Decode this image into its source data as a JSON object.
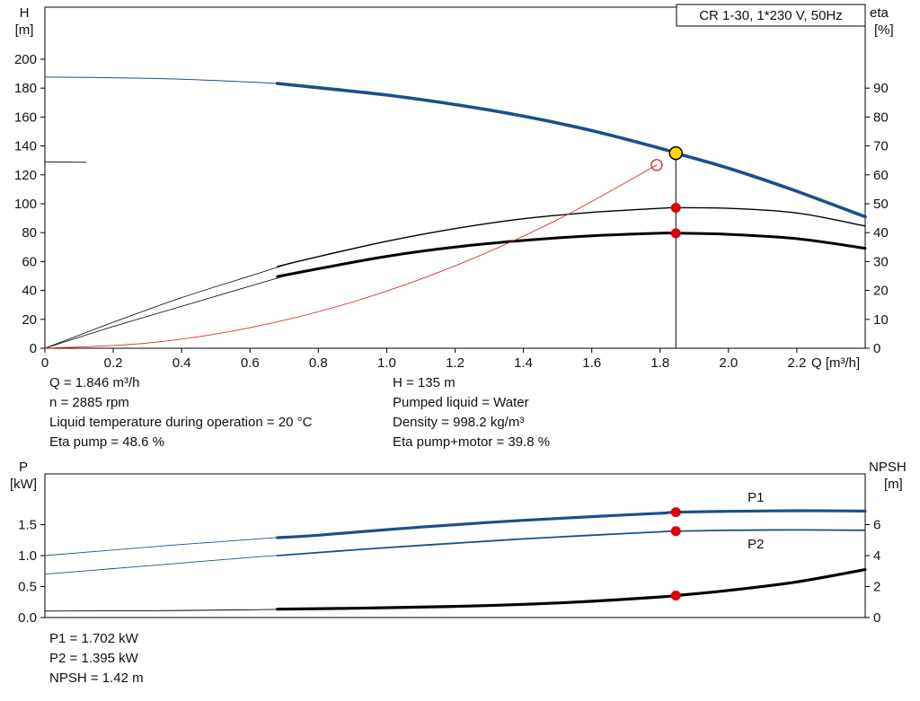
{
  "title_box": "CR 1-30, 1*230 V, 50Hz",
  "colors": {
    "curve_blue": "#1b4f8a",
    "curve_black": "#000000",
    "curve_red": "#dd2c2c",
    "marker_red": "#e00000",
    "marker_yellow": "#ffd800"
  },
  "info": {
    "top_left": [
      "Q = 1.846 m³/h",
      "n = 2885 rpm",
      "Liquid temperature during operation = 20 °C",
      "Eta pump = 48.6 %"
    ],
    "top_right": [
      "H = 135 m",
      "Pumped liquid = Water",
      "Density = 998.2 kg/m³",
      "Eta pump+motor = 39.8 %"
    ],
    "bottom": [
      "P1 = 1.702 kW",
      "P2 = 1.395 kW",
      "NPSH = 1.42 m"
    ]
  },
  "chart_data": [
    {
      "id": "qh-eta",
      "type": "line",
      "x": {
        "lim": [
          0,
          2.4
        ],
        "ticks": [
          0,
          0.2,
          0.4,
          0.6,
          0.8,
          1.0,
          1.2,
          1.4,
          1.6,
          1.8,
          2.0,
          2.2
        ],
        "tick_labels": [
          "0",
          "0.2",
          "0.4",
          "0.6",
          "0.8",
          "1.0",
          "1.2",
          "1.4",
          "1.6",
          "1.8",
          "2.0",
          "2.2"
        ],
        "label": "Q [m³/h]"
      },
      "left_axis": {
        "label_lines": [
          "H",
          "[m]"
        ],
        "lim": [
          0,
          236
        ],
        "ticks": [
          0,
          20,
          40,
          60,
          80,
          100,
          120,
          140,
          160,
          180,
          200
        ],
        "tick_labels": [
          "0",
          "20",
          "40",
          "60",
          "80",
          "100",
          "120",
          "140",
          "160",
          "180",
          "200"
        ]
      },
      "right_axis": {
        "label_lines": [
          "eta",
          "[%]"
        ],
        "lim": [
          0,
          118
        ],
        "ticks": [
          0,
          10,
          20,
          30,
          40,
          50,
          60,
          70,
          80,
          90
        ],
        "tick_labels": [
          "0",
          "10",
          "20",
          "30",
          "40",
          "50",
          "60",
          "70",
          "80",
          "90"
        ]
      },
      "series": [
        {
          "name": "h-curve-lead",
          "axis": "left",
          "color": "#1b4f8a",
          "width": 1,
          "points": [
            [
              0,
              187.6
            ],
            [
              0.2,
              187.2
            ],
            [
              0.4,
              186.2
            ],
            [
              0.6,
              184.2
            ],
            [
              0.72,
              182.8
            ]
          ]
        },
        {
          "name": "h-curve",
          "axis": "left",
          "color": "#1b4f8a",
          "width": 3.6,
          "points": [
            [
              0.68,
              183.2
            ],
            [
              0.8,
              180.3
            ],
            [
              1.0,
              175.2
            ],
            [
              1.2,
              168.6
            ],
            [
              1.4,
              160.6
            ],
            [
              1.6,
              150.6
            ],
            [
              1.8,
              138.4
            ],
            [
              1.846,
              135
            ],
            [
              2.0,
              124.6
            ],
            [
              2.2,
              108.6
            ],
            [
              2.4,
              91
            ]
          ]
        },
        {
          "name": "eta-pump-curve-lead",
          "axis": "right",
          "color": "#000000",
          "width": 0.8,
          "points": [
            [
              0,
              0
            ],
            [
              0.2,
              9
            ],
            [
              0.4,
              17.5
            ],
            [
              0.6,
              25
            ],
            [
              0.72,
              29.5
            ]
          ]
        },
        {
          "name": "eta-pump-curve",
          "axis": "right",
          "color": "#000000",
          "width": 1.4,
          "points": [
            [
              0.68,
              28.3
            ],
            [
              0.8,
              31.7
            ],
            [
              1.0,
              37
            ],
            [
              1.2,
              41.4
            ],
            [
              1.4,
              44.8
            ],
            [
              1.6,
              47
            ],
            [
              1.8,
              48.4
            ],
            [
              1.846,
              48.6
            ],
            [
              2.0,
              48.4
            ],
            [
              2.2,
              46.8
            ],
            [
              2.4,
              42.3
            ]
          ]
        },
        {
          "name": "eta-pump-motor-curve-lead",
          "axis": "right",
          "color": "#000000",
          "width": 0.8,
          "points": [
            [
              0,
              0
            ],
            [
              0.2,
              7.5
            ],
            [
              0.4,
              14.5
            ],
            [
              0.6,
              21.5
            ],
            [
              0.72,
              25.6
            ]
          ]
        },
        {
          "name": "eta-pump-motor-curve",
          "axis": "right",
          "color": "#000000",
          "width": 3,
          "points": [
            [
              0.68,
              24.8
            ],
            [
              0.8,
              27.5
            ],
            [
              1.0,
              31.8
            ],
            [
              1.2,
              35
            ],
            [
              1.4,
              37.3
            ],
            [
              1.6,
              38.9
            ],
            [
              1.8,
              39.8
            ],
            [
              1.846,
              39.8
            ],
            [
              2.0,
              39.4
            ],
            [
              2.2,
              37.9
            ],
            [
              2.4,
              34.6
            ]
          ]
        },
        {
          "name": "system-curve",
          "axis": "left",
          "color": "#dd2c2c",
          "width": 0.9,
          "points": [
            [
              0,
              0
            ],
            [
              0.3,
              3.6
            ],
            [
              0.6,
              14.2
            ],
            [
              0.9,
              32
            ],
            [
              1.2,
              57
            ],
            [
              1.5,
              89
            ],
            [
              1.79,
              126.8
            ]
          ]
        },
        {
          "name": "left-edge-segment",
          "axis": "left",
          "color": "#000000",
          "width": 0.9,
          "points": [
            [
              0,
              129
            ],
            [
              0.12,
              128.7
            ]
          ]
        }
      ],
      "vline": {
        "x": 1.846,
        "y": 135,
        "axis": "left"
      },
      "markers": [
        {
          "name": "system-open-ring",
          "x": 1.79,
          "y": 126.8,
          "axis": "left",
          "r": 6,
          "fill": "none",
          "stroke": "#dd2c2c",
          "stroke_width": 1.4
        },
        {
          "name": "eta-pump-duty-dot",
          "x": 1.846,
          "y": 48.6,
          "axis": "right",
          "r": 5.5,
          "fill": "#e00000"
        },
        {
          "name": "eta-pump-motor-duty-dot",
          "x": 1.846,
          "y": 39.8,
          "axis": "right",
          "r": 5.5,
          "fill": "#e00000"
        },
        {
          "name": "duty-point-marker",
          "x": 1.846,
          "y": 135,
          "axis": "left",
          "r": 7,
          "fill": "#ffd800",
          "stroke": "#000000",
          "stroke_width": 1.5
        }
      ],
      "labels": []
    },
    {
      "id": "p-npsh",
      "type": "line",
      "x": {
        "lim": [
          0,
          2.4
        ],
        "ticks": [],
        "tick_labels": [],
        "label": ""
      },
      "left_axis": {
        "label_lines": [
          "P",
          "[kW]"
        ],
        "lim": [
          0,
          2.32
        ],
        "ticks": [
          0,
          0.5,
          1.0,
          1.5
        ],
        "tick_labels": [
          "0.0",
          "0.5",
          "1.0",
          "1.5"
        ]
      },
      "right_axis": {
        "label_lines": [
          "NPSH",
          "[m]"
        ],
        "lim": [
          0,
          9.28
        ],
        "ticks": [
          0,
          2,
          4,
          6
        ],
        "tick_labels": [
          "0",
          "2",
          "4",
          "6"
        ]
      },
      "series": [
        {
          "name": "p1-curve-lead",
          "axis": "left",
          "color": "#1b4f8a",
          "width": 0.9,
          "points": [
            [
              0,
              1.0
            ],
            [
              0.2,
              1.09
            ],
            [
              0.4,
              1.18
            ],
            [
              0.6,
              1.26
            ],
            [
              0.72,
              1.31
            ]
          ]
        },
        {
          "name": "p1-curve",
          "axis": "left",
          "color": "#1b4f8a",
          "width": 3.2,
          "points": [
            [
              0.68,
              1.29
            ],
            [
              0.8,
              1.33
            ],
            [
              1.0,
              1.42
            ],
            [
              1.2,
              1.5
            ],
            [
              1.4,
              1.57
            ],
            [
              1.6,
              1.63
            ],
            [
              1.8,
              1.685
            ],
            [
              1.846,
              1.702
            ],
            [
              2.0,
              1.715
            ],
            [
              2.2,
              1.725
            ],
            [
              2.4,
              1.72
            ]
          ]
        },
        {
          "name": "p2-curve-lead",
          "axis": "left",
          "color": "#1b4f8a",
          "width": 0.9,
          "points": [
            [
              0,
              0.7
            ],
            [
              0.2,
              0.79
            ],
            [
              0.4,
              0.88
            ],
            [
              0.6,
              0.97
            ],
            [
              0.72,
              1.02
            ]
          ]
        },
        {
          "name": "p2-curve",
          "axis": "left",
          "color": "#1b4f8a",
          "width": 1.8,
          "points": [
            [
              0.68,
              1.0
            ],
            [
              0.8,
              1.05
            ],
            [
              1.0,
              1.13
            ],
            [
              1.2,
              1.2
            ],
            [
              1.4,
              1.27
            ],
            [
              1.6,
              1.33
            ],
            [
              1.8,
              1.385
            ],
            [
              1.846,
              1.395
            ],
            [
              2.0,
              1.41
            ],
            [
              2.2,
              1.415
            ],
            [
              2.4,
              1.41
            ]
          ]
        },
        {
          "name": "npsh-curve-lead",
          "axis": "right",
          "color": "#000000",
          "width": 0.9,
          "points": [
            [
              0,
              0.42
            ],
            [
              0.3,
              0.44
            ],
            [
              0.6,
              0.5
            ],
            [
              0.72,
              0.55
            ]
          ]
        },
        {
          "name": "npsh-curve",
          "axis": "right",
          "color": "#000000",
          "width": 3.2,
          "points": [
            [
              0.68,
              0.54
            ],
            [
              0.9,
              0.6
            ],
            [
              1.2,
              0.72
            ],
            [
              1.4,
              0.85
            ],
            [
              1.6,
              1.05
            ],
            [
              1.8,
              1.33
            ],
            [
              1.846,
              1.42
            ],
            [
              2.0,
              1.75
            ],
            [
              2.2,
              2.3
            ],
            [
              2.4,
              3.1
            ]
          ]
        }
      ],
      "markers": [
        {
          "name": "p1-duty-dot",
          "x": 1.846,
          "y": 1.702,
          "axis": "left",
          "r": 5.5,
          "fill": "#e00000"
        },
        {
          "name": "p2-duty-dot",
          "x": 1.846,
          "y": 1.395,
          "axis": "left",
          "r": 5.5,
          "fill": "#e00000"
        },
        {
          "name": "npsh-duty-dot",
          "x": 1.846,
          "y": 1.42,
          "axis": "right",
          "r": 5.5,
          "fill": "#e00000"
        }
      ],
      "labels": [
        {
          "name": "p1-series-label",
          "text": "P1",
          "x": 2.08,
          "y": 1.87,
          "axis": "left",
          "color": "#1b4f8a"
        },
        {
          "name": "p2-series-label",
          "text": "P2",
          "x": 2.08,
          "y": 1.12,
          "axis": "left",
          "color": "#1b4f8a"
        }
      ]
    }
  ]
}
